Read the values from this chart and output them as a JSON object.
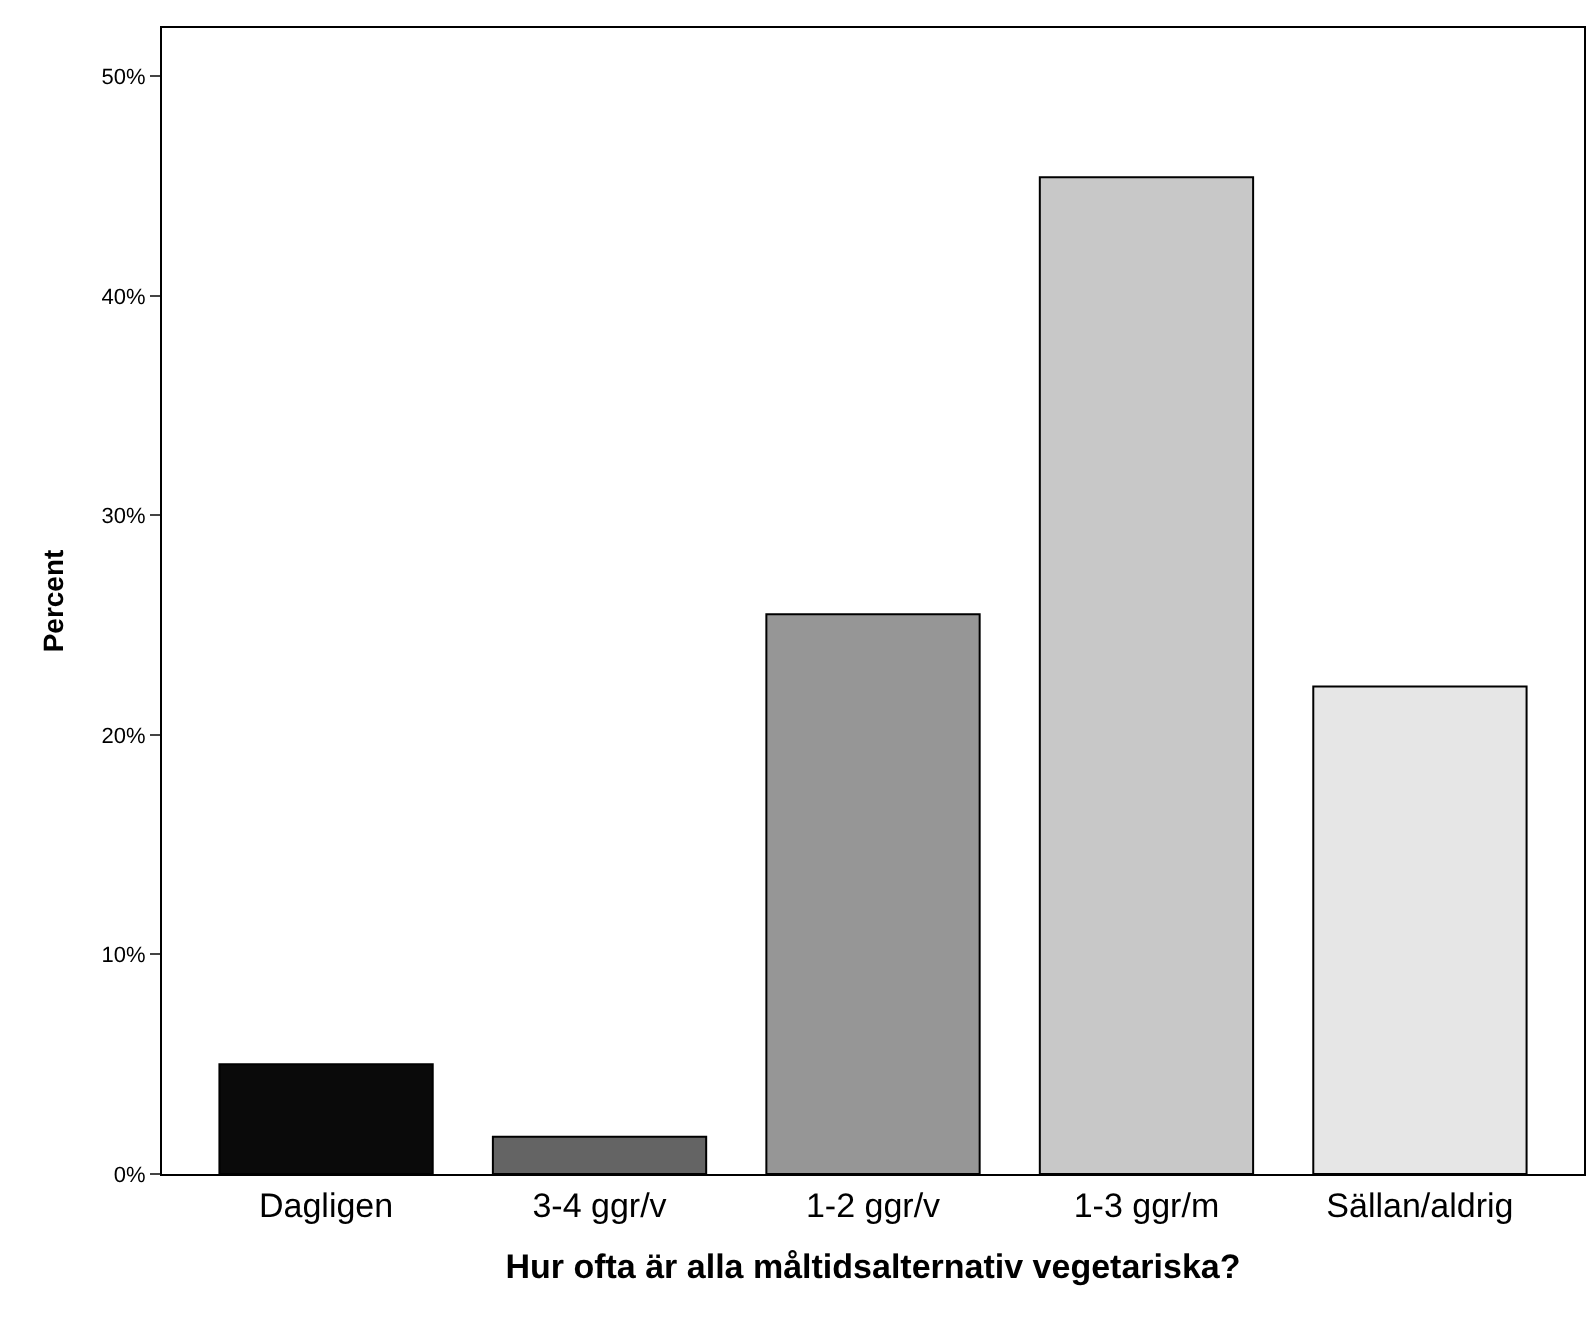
{
  "chart_data": {
    "type": "bar",
    "xlabel": "Hur ofta är alla måltidsalternativ vegetariska?",
    "ylabel": "Percent",
    "categories": [
      "Dagligen",
      "3-4 ggr/v",
      "1-2 ggr/v",
      "1-3 ggr/m",
      "Sällan/aldrig"
    ],
    "values": [
      5.0,
      1.7,
      25.5,
      45.4,
      22.2
    ],
    "colors": [
      "#0a0a0a",
      "#646464",
      "#969696",
      "#c8c8c8",
      "#e6e6e6"
    ],
    "ylim": [
      0,
      52.2
    ],
    "yticks": [
      {
        "value": 0,
        "label": "0%"
      },
      {
        "value": 10,
        "label": "10%"
      },
      {
        "value": 20,
        "label": "20%"
      },
      {
        "value": 30,
        "label": "30%"
      },
      {
        "value": 40,
        "label": "40%"
      },
      {
        "value": 50,
        "label": "50%"
      }
    ],
    "tick_labels": true
  }
}
